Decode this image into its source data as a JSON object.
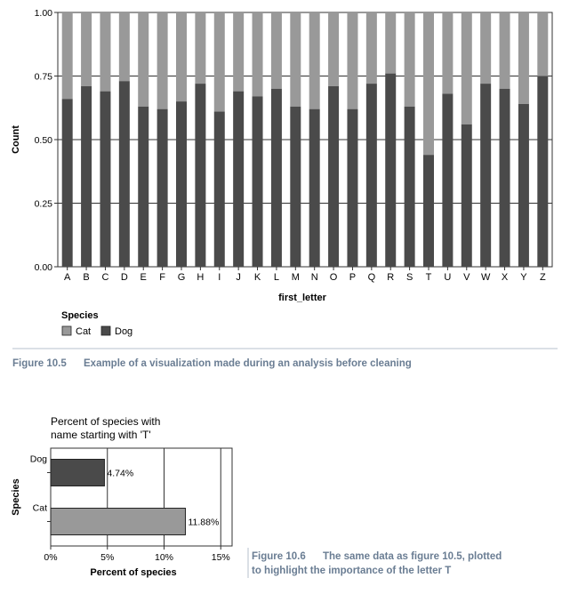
{
  "chart_data": [
    {
      "type": "bar",
      "stacked": true,
      "x_title": "first_letter",
      "y_title": "Count",
      "ylim": [
        0,
        1
      ],
      "y_ticks": [
        "0.00",
        "0.25",
        "0.50",
        "0.75",
        "1.00"
      ],
      "grid": true,
      "categories": [
        "A",
        "B",
        "C",
        "D",
        "E",
        "F",
        "G",
        "H",
        "I",
        "J",
        "K",
        "L",
        "M",
        "N",
        "O",
        "P",
        "Q",
        "R",
        "S",
        "T",
        "U",
        "V",
        "W",
        "X",
        "Y",
        "Z"
      ],
      "series": [
        {
          "name": "Dog",
          "color": "#4a4a4a",
          "values": [
            0.66,
            0.71,
            0.69,
            0.73,
            0.63,
            0.62,
            0.65,
            0.72,
            0.61,
            0.69,
            0.67,
            0.7,
            0.63,
            0.62,
            0.71,
            0.62,
            0.72,
            0.76,
            0.63,
            0.44,
            0.68,
            0.56,
            0.72,
            0.7,
            0.64,
            0.75
          ]
        },
        {
          "name": "Cat",
          "color": "#999999",
          "values": [
            0.34,
            0.29,
            0.31,
            0.27,
            0.37,
            0.38,
            0.35,
            0.28,
            0.39,
            0.31,
            0.33,
            0.3,
            0.37,
            0.38,
            0.29,
            0.38,
            0.28,
            0.24,
            0.37,
            0.56,
            0.32,
            0.44,
            0.28,
            0.3,
            0.36,
            0.25
          ]
        }
      ],
      "legend": {
        "title": "Species",
        "position": "bottom-left",
        "items": [
          "Cat",
          "Dog"
        ]
      }
    },
    {
      "type": "bar",
      "orientation": "horizontal",
      "title": "Percent of species with name starting with 'T'",
      "title_lines": [
        "Percent of species with",
        "name starting with 'T'"
      ],
      "x_title": "Percent of species",
      "y_title": "Species",
      "xlim": [
        0,
        0.16
      ],
      "x_ticks": [
        "0%",
        "5%",
        "10%",
        "15%"
      ],
      "grid": true,
      "categories": [
        "Dog",
        "Cat"
      ],
      "values": [
        0.0474,
        0.1188
      ],
      "data_labels": [
        "4.74%",
        "11.88%"
      ],
      "colors": [
        "#4a4a4a",
        "#999999"
      ]
    }
  ],
  "captions": {
    "fig1_label": "Figure 10.5",
    "fig1_text": "Example of a visualization made during an analysis before cleaning",
    "fig2_label": "Figure 10.6",
    "fig2_text_lines": [
      "The same data as figure 10.5, plotted",
      "to highlight the importance of the letter T"
    ]
  }
}
